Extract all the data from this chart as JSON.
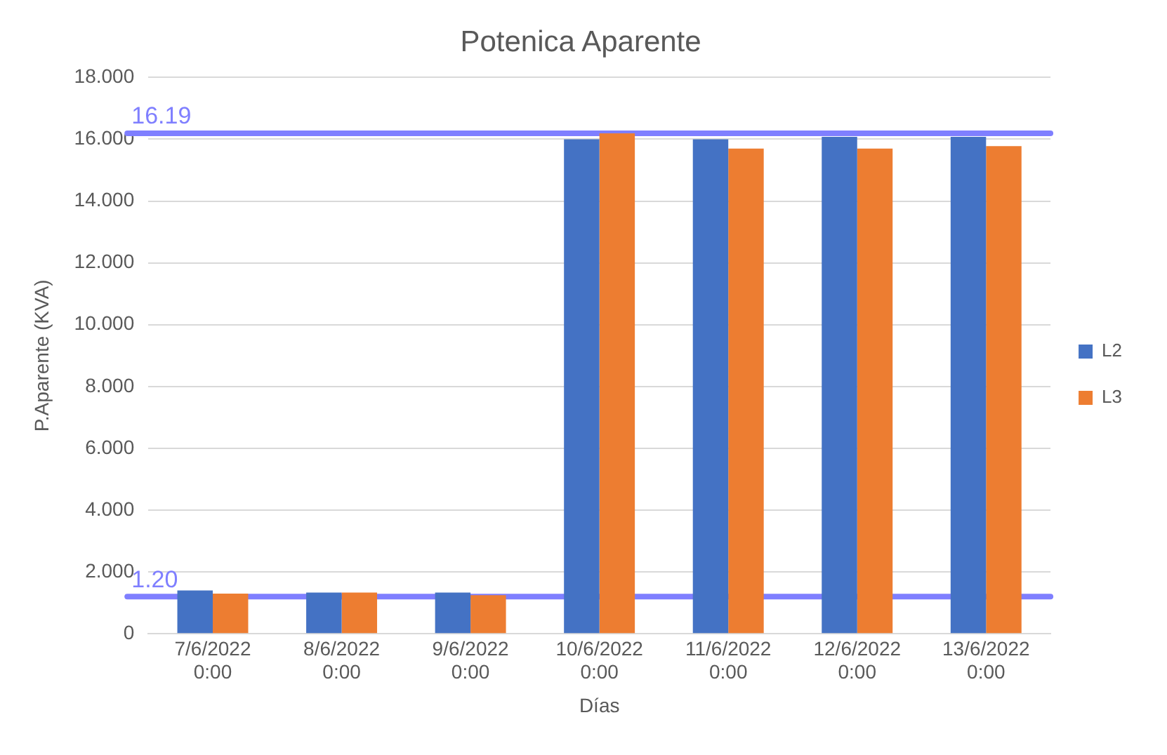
{
  "chart_data": {
    "type": "bar",
    "title": "Potenica Aparente",
    "xlabel": "Días",
    "ylabel": "P.Aparente (KVA)",
    "categories": [
      "7/6/2022 0:00",
      "8/6/2022 0:00",
      "9/6/2022 0:00",
      "10/6/2022 0:00",
      "11/6/2022 0:00",
      "12/6/2022 0:00",
      "13/6/2022 0:00"
    ],
    "series": [
      {
        "name": "L2",
        "color": "#4472c4",
        "values": [
          1.4,
          1.33,
          1.33,
          16.0,
          16.0,
          16.08,
          16.08
        ]
      },
      {
        "name": "L3",
        "color": "#ed7d31",
        "values": [
          1.3,
          1.33,
          1.25,
          16.19,
          15.7,
          15.7,
          15.78
        ]
      }
    ],
    "ylim": [
      0,
      18
    ],
    "yticks": [
      {
        "value": 0,
        "label": "0"
      },
      {
        "value": 2,
        "label": "2.000"
      },
      {
        "value": 4,
        "label": "4.000"
      },
      {
        "value": 6,
        "label": "6.000"
      },
      {
        "value": 8,
        "label": "8.000"
      },
      {
        "value": 10,
        "label": "10.000"
      },
      {
        "value": 12,
        "label": "12.000"
      },
      {
        "value": 14,
        "label": "14.000"
      },
      {
        "value": 16,
        "label": "16.000"
      },
      {
        "value": 18,
        "label": "18.000"
      }
    ],
    "ref_lines": [
      {
        "axis": "y",
        "value": 16.19,
        "label": "16.19",
        "color": "#7f7fff"
      },
      {
        "axis": "y",
        "value": 1.2,
        "label": "1.20",
        "color": "#7f7fff"
      }
    ],
    "grid": "y",
    "legend": "right"
  }
}
